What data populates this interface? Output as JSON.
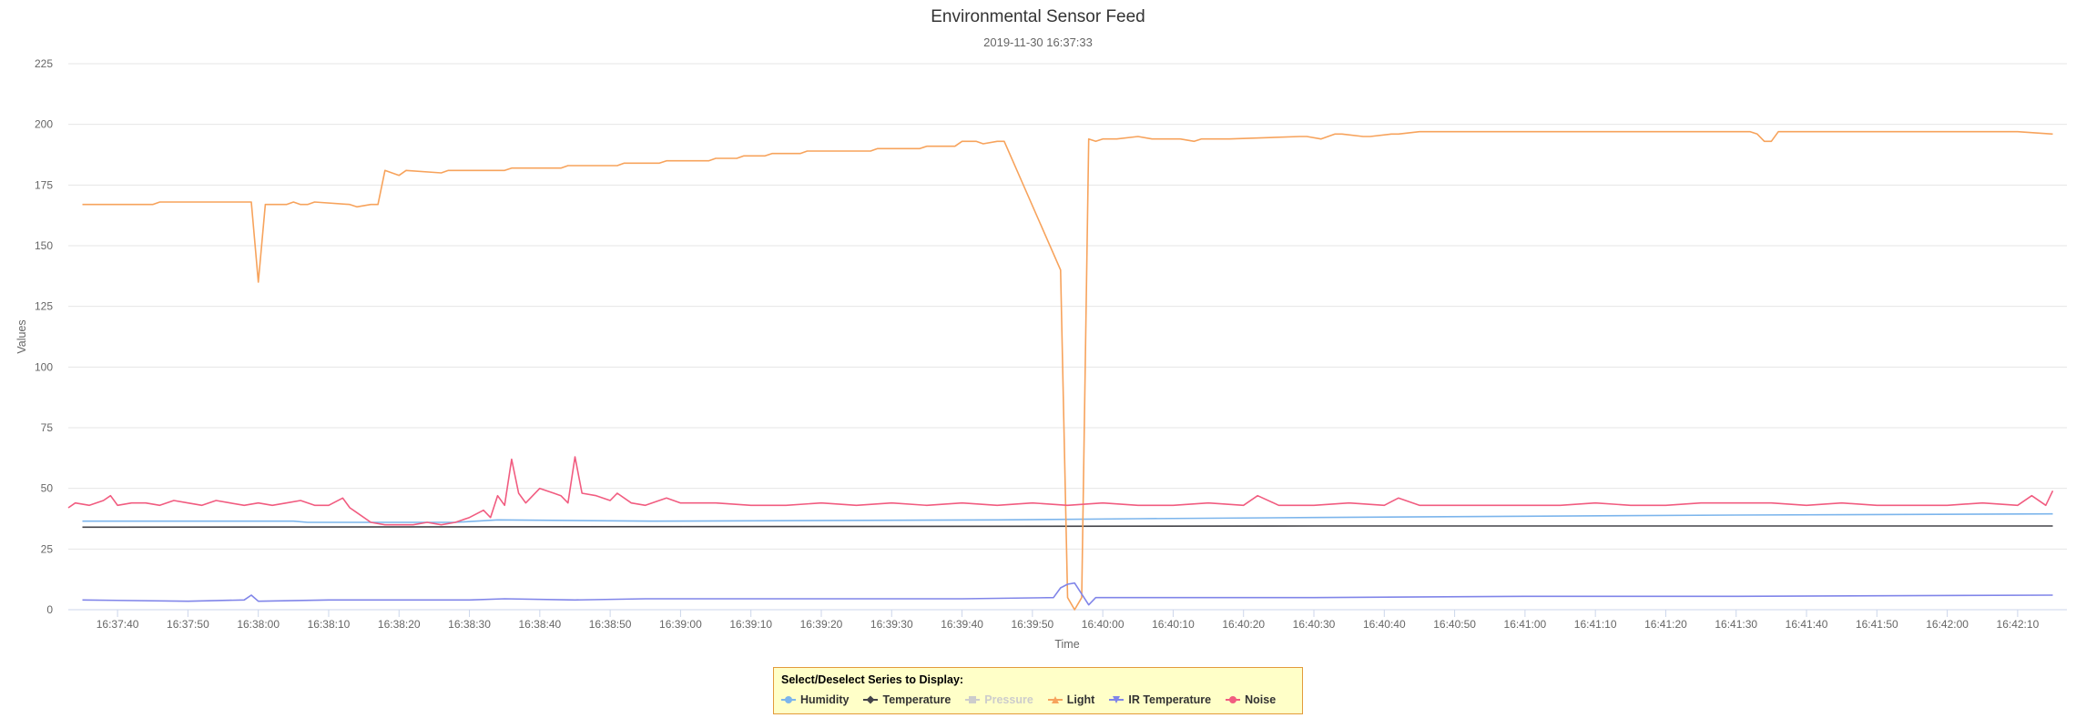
{
  "chart_data": {
    "type": "line",
    "title": "Environmental Sensor Feed",
    "subtitle": "2019-11-30 16:37:33",
    "xlabel": "Time",
    "ylabel": "Values",
    "ylim": [
      0,
      225
    ],
    "yticks": [
      0,
      25,
      50,
      75,
      100,
      125,
      150,
      175,
      200,
      225
    ],
    "xlim": [
      "16:37:33",
      "16:42:17"
    ],
    "xticks": [
      "16:37:40",
      "16:37:50",
      "16:38:00",
      "16:38:10",
      "16:38:20",
      "16:38:30",
      "16:38:40",
      "16:38:50",
      "16:39:00",
      "16:39:10",
      "16:39:20",
      "16:39:30",
      "16:39:40",
      "16:39:50",
      "16:40:00",
      "16:40:10",
      "16:40:20",
      "16:40:30",
      "16:40:40",
      "16:40:50",
      "16:41:00",
      "16:41:10",
      "16:41:20",
      "16:41:30",
      "16:41:40",
      "16:41:50",
      "16:42:00",
      "16:42:10"
    ],
    "grid": true,
    "legend_placement": "bottom-center",
    "series": [
      {
        "name": "Humidity",
        "color": "#7cb5ec",
        "visible": true,
        "symbol": "circle",
        "x": [
          "16:37:35",
          "16:38:05",
          "16:38:07",
          "16:38:28",
          "16:38:34",
          "16:38:56",
          "16:39:45",
          "16:40:05",
          "16:40:30",
          "16:41:00",
          "16:41:30",
          "16:42:15"
        ],
        "values": [
          36.5,
          36.5,
          36,
          36,
          37,
          36.5,
          37,
          37.5,
          38,
          38.5,
          39,
          39.5
        ]
      },
      {
        "name": "Temperature",
        "color": "#434348",
        "visible": true,
        "symbol": "diamond",
        "x": [
          "16:37:35",
          "16:40:30",
          "16:42:15"
        ],
        "values": [
          34,
          34.5,
          34.5
        ]
      },
      {
        "name": "Pressure",
        "color": "#90ed7d",
        "visible": false,
        "symbol": "square",
        "x": [],
        "values": []
      },
      {
        "name": "Light",
        "color": "#f7a35c",
        "visible": true,
        "symbol": "triangle",
        "x": [
          "16:37:35",
          "16:37:45",
          "16:37:46",
          "16:37:59",
          "16:38:00",
          "16:38:01",
          "16:38:04",
          "16:38:05",
          "16:38:06",
          "16:38:07",
          "16:38:08",
          "16:38:13",
          "16:38:14",
          "16:38:16",
          "16:38:17",
          "16:38:18",
          "16:38:19",
          "16:38:20",
          "16:38:21",
          "16:38:26",
          "16:38:27",
          "16:38:35",
          "16:38:36",
          "16:38:43",
          "16:38:44",
          "16:38:51",
          "16:38:52",
          "16:38:57",
          "16:38:58",
          "16:39:04",
          "16:39:05",
          "16:39:08",
          "16:39:09",
          "16:39:12",
          "16:39:13",
          "16:39:17",
          "16:39:18",
          "16:39:27",
          "16:39:28",
          "16:39:34",
          "16:39:35",
          "16:39:39",
          "16:39:40",
          "16:39:42",
          "16:39:43",
          "16:39:45",
          "16:39:46",
          "16:39:54",
          "16:39:55",
          "16:39:56",
          "16:39:57",
          "16:39:58",
          "16:39:59",
          "16:40:00",
          "16:40:01",
          "16:40:02",
          "16:40:05",
          "16:40:07",
          "16:40:08",
          "16:40:11",
          "16:40:13",
          "16:40:14",
          "16:40:15",
          "16:40:16",
          "16:40:18",
          "16:40:28",
          "16:40:29",
          "16:40:31",
          "16:40:33",
          "16:40:34",
          "16:40:37",
          "16:40:38",
          "16:40:41",
          "16:40:42",
          "16:40:45",
          "16:40:46",
          "16:40:48",
          "16:41:00",
          "16:41:23",
          "16:41:24",
          "16:41:32",
          "16:41:33",
          "16:41:34",
          "16:41:35",
          "16:41:36",
          "16:42:10",
          "16:42:15"
        ],
        "values": [
          167,
          167,
          168,
          168,
          135,
          167,
          167,
          168,
          167,
          167,
          168,
          167,
          166,
          167,
          167,
          181,
          180,
          179,
          181,
          180,
          181,
          181,
          182,
          182,
          183,
          183,
          184,
          184,
          185,
          185,
          186,
          186,
          187,
          187,
          188,
          188,
          189,
          189,
          190,
          190,
          191,
          191,
          193,
          193,
          192,
          193,
          193,
          140,
          5,
          0,
          5,
          194,
          193,
          194,
          194,
          194,
          195,
          194,
          194,
          194,
          193,
          194,
          194,
          194,
          194,
          195,
          195,
          194,
          196,
          196,
          195,
          195,
          196,
          196,
          197,
          197,
          197,
          197,
          197,
          197,
          197,
          196,
          193,
          193,
          197,
          197,
          196
        ]
      },
      {
        "name": "IR Temperature",
        "color": "#8085e9",
        "visible": true,
        "symbol": "triangle-down",
        "x": [
          "16:37:35",
          "16:37:50",
          "16:37:58",
          "16:37:59",
          "16:38:00",
          "16:38:10",
          "16:38:30",
          "16:38:35",
          "16:38:45",
          "16:38:55",
          "16:39:10",
          "16:39:40",
          "16:39:53",
          "16:39:54",
          "16:39:55",
          "16:39:56",
          "16:39:58",
          "16:39:59",
          "16:40:00",
          "16:40:30",
          "16:41:00",
          "16:41:30",
          "16:42:15"
        ],
        "values": [
          4,
          3.5,
          4,
          6,
          3.5,
          4,
          4,
          4.5,
          4,
          4.5,
          4.5,
          4.5,
          5,
          9,
          10.5,
          11,
          2,
          5,
          5,
          5,
          5.5,
          5.5,
          6
        ]
      },
      {
        "name": "Noise",
        "color": "#f15c80",
        "visible": true,
        "symbol": "circle",
        "x": [
          "16:37:33",
          "16:37:34",
          "16:37:36",
          "16:37:38",
          "16:37:39",
          "16:37:40",
          "16:37:42",
          "16:37:44",
          "16:37:46",
          "16:37:48",
          "16:37:50",
          "16:37:52",
          "16:37:54",
          "16:37:56",
          "16:37:58",
          "16:38:00",
          "16:38:02",
          "16:38:04",
          "16:38:06",
          "16:38:08",
          "16:38:10",
          "16:38:12",
          "16:38:13",
          "16:38:14",
          "16:38:16",
          "16:38:18",
          "16:38:20",
          "16:38:22",
          "16:38:24",
          "16:38:26",
          "16:38:28",
          "16:38:30",
          "16:38:32",
          "16:38:33",
          "16:38:34",
          "16:38:35",
          "16:38:36",
          "16:38:37",
          "16:38:38",
          "16:38:39",
          "16:38:40",
          "16:38:42",
          "16:38:43",
          "16:38:44",
          "16:38:45",
          "16:38:46",
          "16:38:48",
          "16:38:50",
          "16:38:51",
          "16:38:53",
          "16:38:55",
          "16:38:58",
          "16:39:00",
          "16:39:05",
          "16:39:10",
          "16:39:15",
          "16:39:20",
          "16:39:25",
          "16:39:30",
          "16:39:35",
          "16:39:40",
          "16:39:45",
          "16:39:50",
          "16:39:55",
          "16:40:00",
          "16:40:05",
          "16:40:10",
          "16:40:15",
          "16:40:20",
          "16:40:22",
          "16:40:25",
          "16:40:30",
          "16:40:35",
          "16:40:40",
          "16:40:42",
          "16:40:45",
          "16:40:50",
          "16:40:55",
          "16:41:00",
          "16:41:05",
          "16:41:10",
          "16:41:15",
          "16:41:20",
          "16:41:25",
          "16:41:30",
          "16:41:35",
          "16:41:40",
          "16:41:45",
          "16:41:50",
          "16:41:55",
          "16:42:00",
          "16:42:05",
          "16:42:10",
          "16:42:12",
          "16:42:14",
          "16:42:15"
        ],
        "values": [
          42,
          44,
          43,
          45,
          47,
          43,
          44,
          44,
          43,
          45,
          44,
          43,
          45,
          44,
          43,
          44,
          43,
          44,
          45,
          43,
          43,
          46,
          42,
          40,
          36,
          35,
          35,
          35,
          36,
          35,
          36,
          38,
          41,
          38,
          47,
          43,
          62,
          48,
          44,
          47,
          50,
          48,
          47,
          44,
          63,
          48,
          47,
          45,
          48,
          44,
          43,
          46,
          44,
          44,
          43,
          43,
          44,
          43,
          44,
          43,
          44,
          43,
          44,
          43,
          44,
          43,
          43,
          44,
          43,
          47,
          43,
          43,
          44,
          43,
          46,
          43,
          43,
          43,
          43,
          43,
          44,
          43,
          43,
          44,
          44,
          44,
          43,
          44,
          43,
          43,
          43,
          44,
          43,
          47,
          43,
          49
        ]
      }
    ]
  },
  "legend": {
    "title": "Select/Deselect Series to Display:",
    "items": [
      {
        "label": "Humidity"
      },
      {
        "label": "Temperature"
      },
      {
        "label": "Pressure"
      },
      {
        "label": "Light"
      },
      {
        "label": "IR Temperature"
      },
      {
        "label": "Noise"
      }
    ]
  }
}
